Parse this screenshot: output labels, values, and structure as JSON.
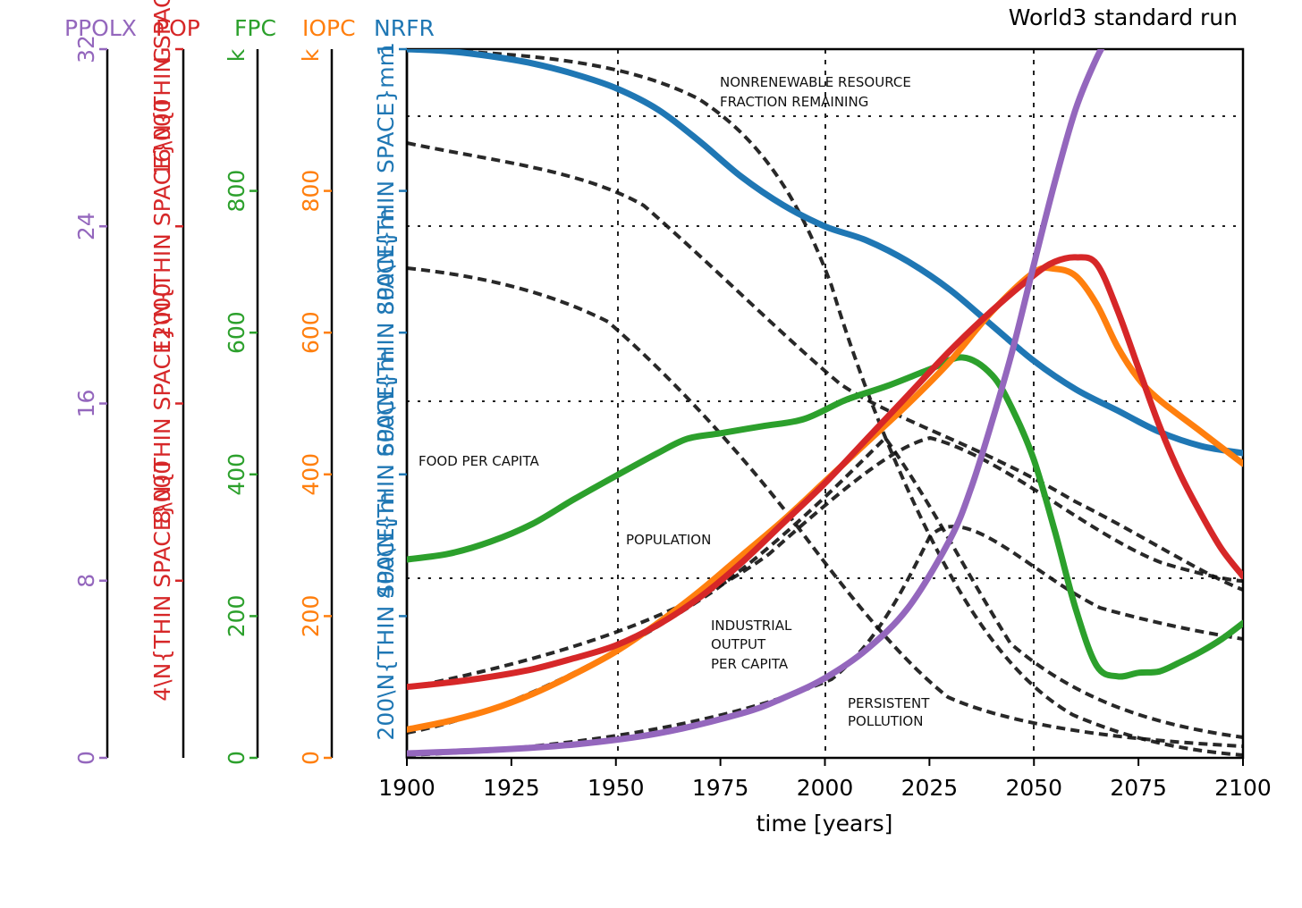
{
  "chart_data": {
    "type": "line",
    "title": "World3 standard run",
    "xlabel": "time [years]",
    "xlim": [
      1900,
      2100
    ],
    "x_ticks": [
      "1900",
      "1925",
      "1950",
      "1975",
      "2000",
      "2025",
      "2050",
      "2075",
      "2100"
    ],
    "legend": [
      "PPOLX",
      "POP",
      "FPC",
      "IOPC",
      "NRFR"
    ],
    "axes": [
      {
        "key": "ppolx",
        "name": "PPOLX",
        "color": "#9467bd",
        "ylim": [
          0,
          32
        ],
        "ticks": [
          "0",
          "8",
          "16",
          "24",
          "32"
        ]
      },
      {
        "key": "pop",
        "name": "POP",
        "color": "#d62728",
        "ylim": [
          0,
          16000000000
        ],
        "unit_label": "G",
        "ticks": [
          "4\\N{THIN SPACE}000",
          "8\\N{THIN SPACE}000",
          "12\\N{THIN SPACE}000",
          "16\\N{THIN SPACE}000"
        ],
        "tick_values": [
          4000000000,
          8000000000,
          12000000000,
          16000000000
        ]
      },
      {
        "key": "fpc",
        "name": "FPC",
        "color": "#2ca02c",
        "ylim": [
          0,
          1000
        ],
        "unit_label": "k",
        "ticks": [
          "0",
          "200",
          "400",
          "600",
          "800"
        ]
      },
      {
        "key": "iopc",
        "name": "IOPC",
        "color": "#ff7f0e",
        "ylim": [
          0,
          1000
        ],
        "unit_label": "k",
        "ticks": [
          "0",
          "200",
          "400",
          "600",
          "800"
        ]
      },
      {
        "key": "nrfr",
        "name": "NRFR",
        "color": "#1f77b4",
        "ylim": [
          0,
          1
        ],
        "unit_label": "m",
        "ticks": [
          "200\\N{THIN SPACE}m",
          "400\\N{THIN SPACE}m",
          "600\\N{THIN SPACE}m",
          "800\\N{THIN SPACE}m",
          "1"
        ],
        "tick_values": [
          0.2,
          0.4,
          0.6,
          0.8,
          1.0
        ]
      }
    ],
    "background_annotations": [
      "NONRENEWABLE RESOURCE FRACTION REMAINING",
      "FOOD PER CAPITA",
      "POPULATION",
      "INDUSTRIAL OUTPUT PER CAPITA",
      "PERSISTENT POLLUTION"
    ],
    "series": [
      {
        "name": "NRFR",
        "axis": "nrfr",
        "x": [
          1900,
          1910,
          1920,
          1930,
          1940,
          1950,
          1960,
          1970,
          1980,
          1990,
          2000,
          2010,
          2020,
          2030,
          2040,
          2050,
          2060,
          2070,
          2080,
          2090,
          2100
        ],
        "y": [
          1.0,
          0.997,
          0.99,
          0.98,
          0.965,
          0.945,
          0.915,
          0.87,
          0.82,
          0.78,
          0.75,
          0.73,
          0.7,
          0.66,
          0.61,
          0.56,
          0.52,
          0.49,
          0.46,
          0.44,
          0.43
        ]
      },
      {
        "name": "FPC",
        "axis": "fpc",
        "x": [
          1900,
          1910,
          1920,
          1930,
          1940,
          1950,
          1960,
          1967,
          1975,
          1985,
          1995,
          2005,
          2015,
          2025,
          2033,
          2040,
          2045,
          2050,
          2055,
          2060,
          2065,
          2070,
          2075,
          2080,
          2085,
          2090,
          2095,
          2100
        ],
        "y": [
          280,
          288,
          305,
          330,
          365,
          398,
          430,
          450,
          458,
          468,
          478,
          505,
          525,
          548,
          565,
          540,
          490,
          420,
          320,
          210,
          130,
          115,
          120,
          122,
          135,
          150,
          168,
          190
        ]
      },
      {
        "name": "IOPC",
        "axis": "iopc",
        "x": [
          1900,
          1910,
          1920,
          1930,
          1940,
          1950,
          1960,
          1970,
          1980,
          1990,
          2000,
          2010,
          2020,
          2030,
          2040,
          2050,
          2055,
          2060,
          2065,
          2070,
          2075,
          2080,
          2090,
          2100
        ],
        "y": [
          40,
          52,
          68,
          90,
          118,
          150,
          190,
          235,
          285,
          335,
          390,
          445,
          500,
          560,
          630,
          685,
          690,
          680,
          640,
          580,
          535,
          505,
          460,
          415
        ]
      },
      {
        "name": "POP",
        "axis": "pop",
        "x": [
          1900,
          1910,
          1920,
          1930,
          1940,
          1950,
          1960,
          1970,
          1980,
          1990,
          2000,
          2010,
          2020,
          2030,
          2040,
          2050,
          2055,
          2060,
          2065,
          2070,
          2075,
          2080,
          2085,
          2090,
          2095,
          2100
        ],
        "y": [
          1600000000,
          1700000000,
          1830000000,
          2000000000,
          2250000000,
          2540000000,
          3000000000,
          3620000000,
          4400000000,
          5300000000,
          6200000000,
          7200000000,
          8200000000,
          9200000000,
          10100000000,
          10900000000,
          11200000000,
          11300000000,
          11150000000,
          10100000000,
          8800000000,
          7500000000,
          6400000000,
          5500000000,
          4700000000,
          4100000000
        ]
      },
      {
        "name": "PPOLX",
        "axis": "ppolx",
        "x": [
          1900,
          1920,
          1940,
          1960,
          1980,
          1990,
          2000,
          2010,
          2020,
          2030,
          2035,
          2040,
          2045,
          2050,
          2055,
          2060,
          2065,
          2068
        ],
        "y": [
          0.2,
          0.35,
          0.6,
          1.1,
          2.0,
          2.7,
          3.6,
          4.9,
          6.8,
          9.9,
          12.2,
          15.2,
          18.5,
          22.3,
          26.0,
          29.3,
          31.6,
          32.6
        ]
      }
    ]
  }
}
